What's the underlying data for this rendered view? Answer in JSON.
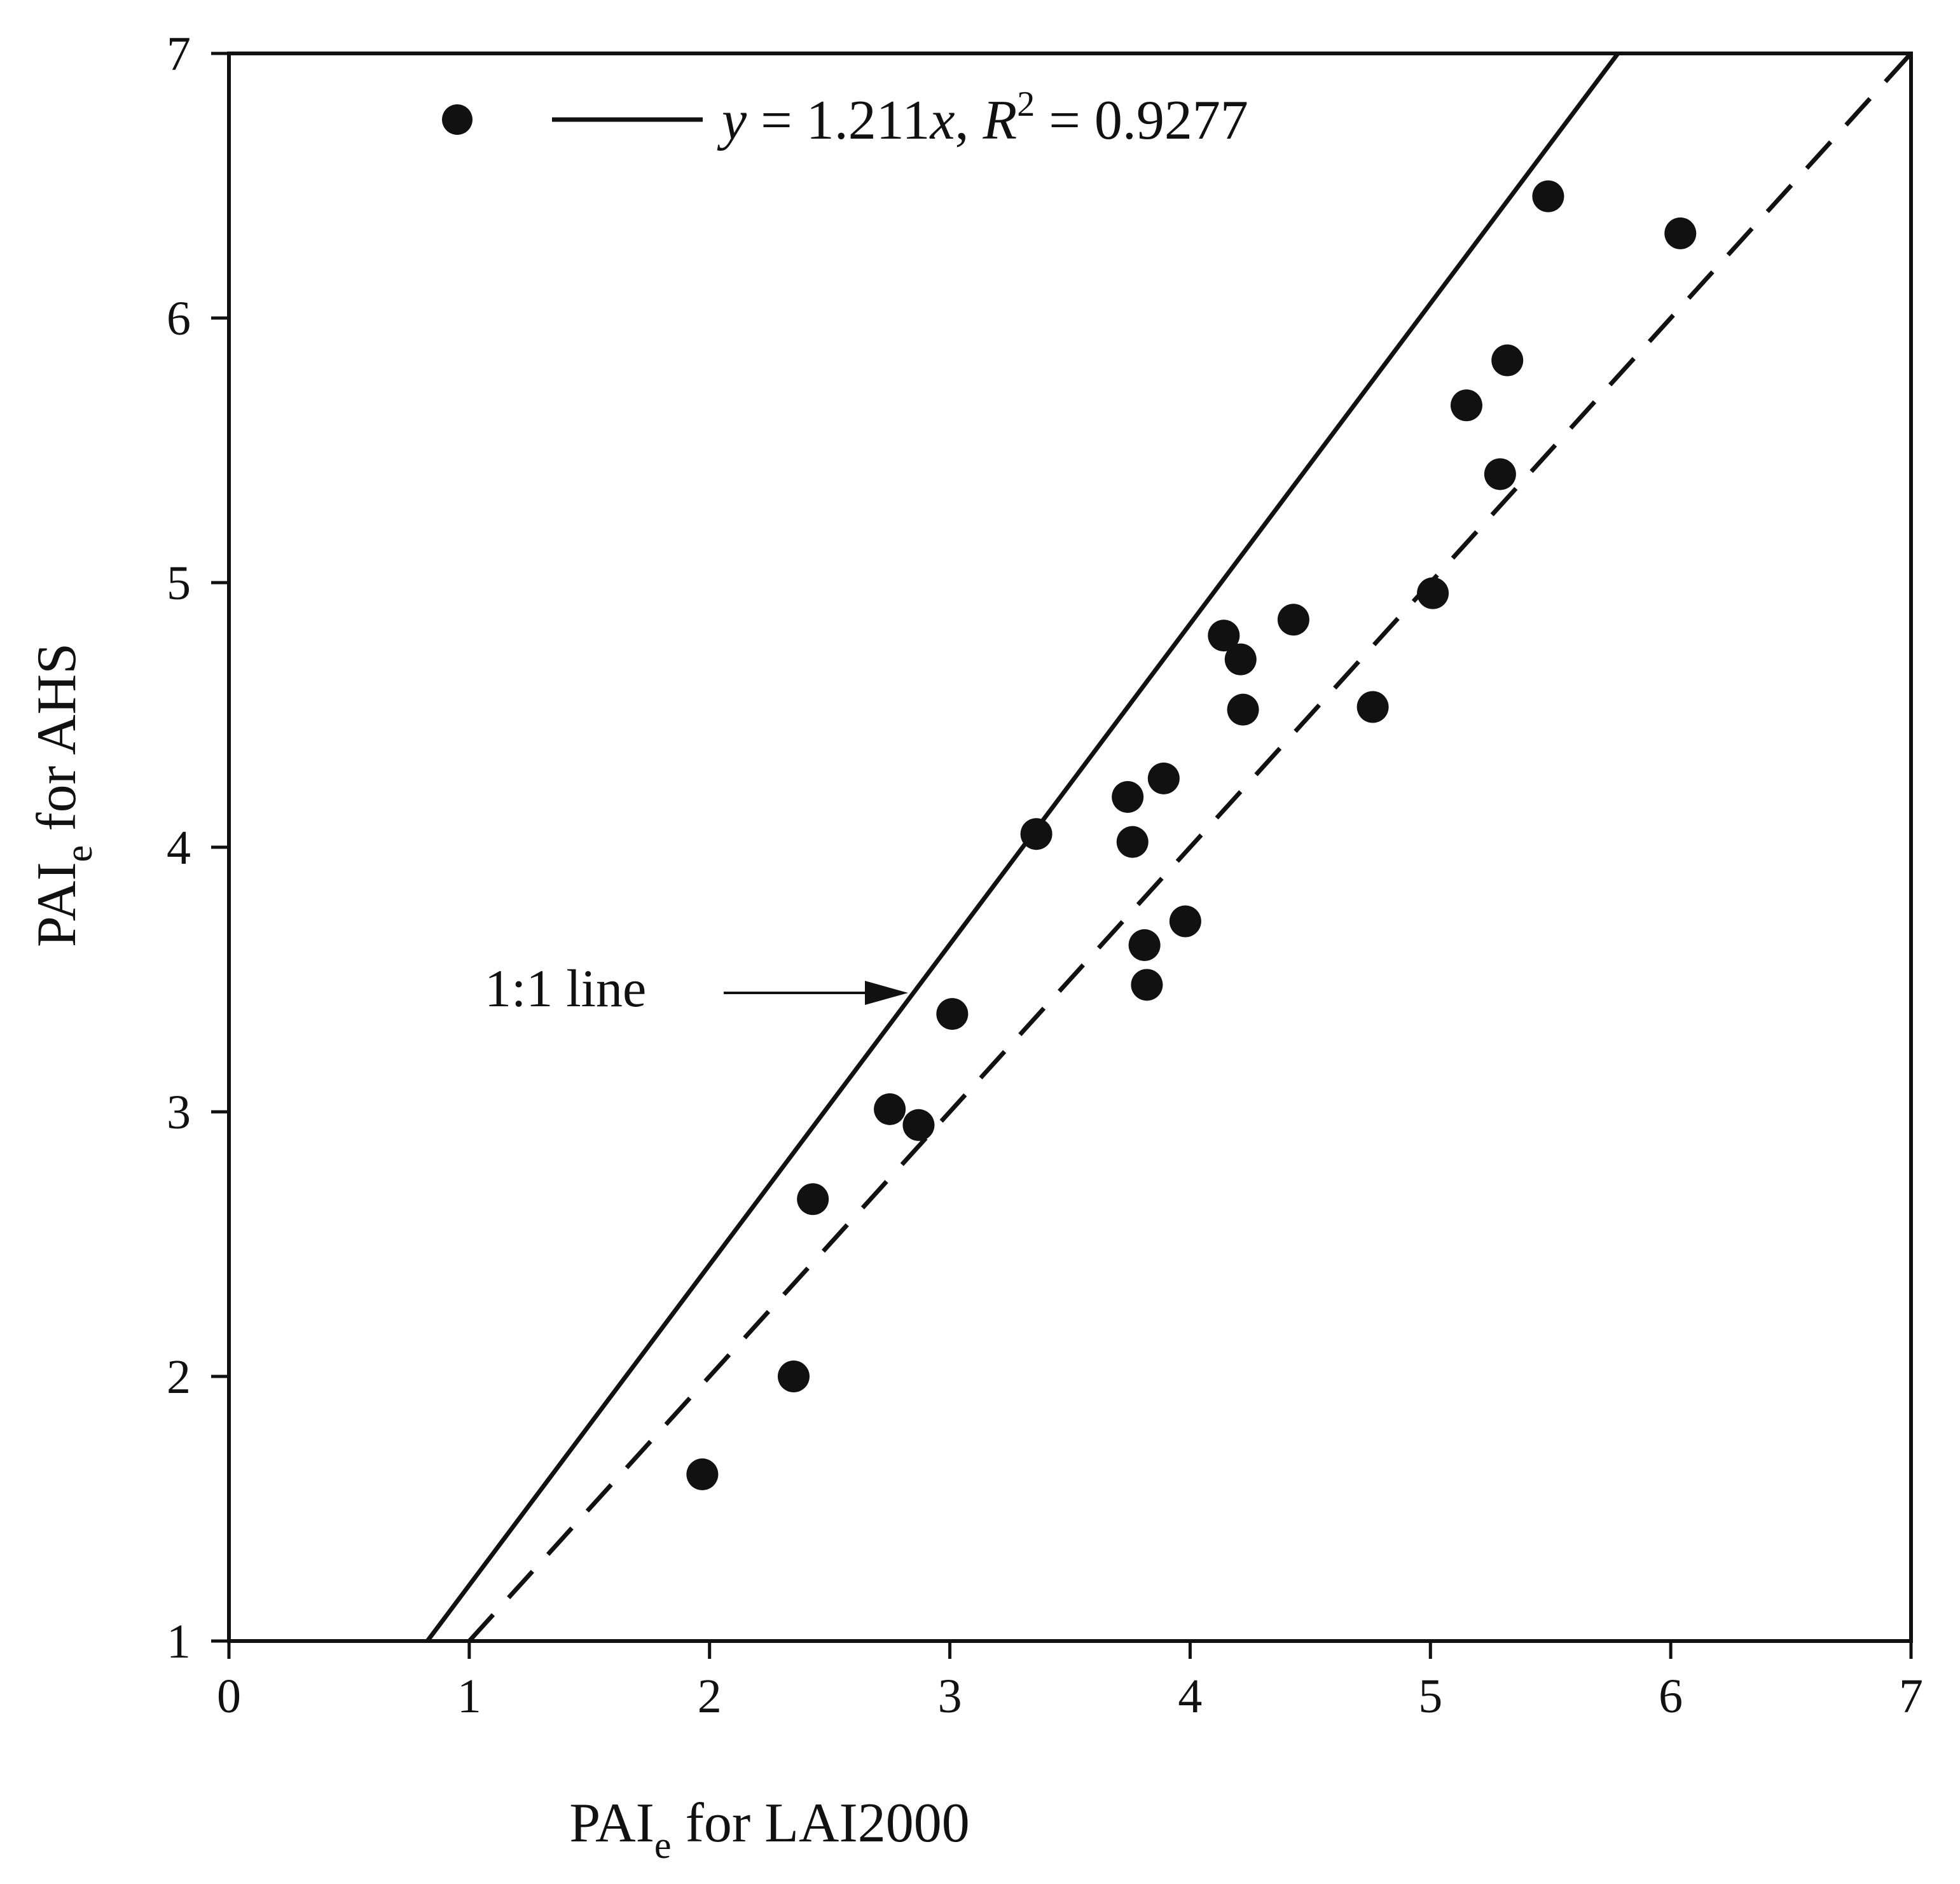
{
  "chart_data": {
    "type": "scatter",
    "xlabel": {
      "main": "PAI",
      "sub": "e",
      "rest": " for LAI2000"
    },
    "ylabel": {
      "main": "PAI",
      "sub": "e",
      "rest": " for AHS"
    },
    "xlim": [
      0,
      7
    ],
    "ylim": [
      1,
      7
    ],
    "xticks": [
      "0",
      "1",
      "2",
      "3",
      "4",
      "5",
      "6",
      "7"
    ],
    "yticks": [
      "1",
      "2",
      "3",
      "4",
      "5",
      "6",
      "7"
    ],
    "grid": false,
    "legend": {
      "placement": "top-left",
      "eq_y": "y",
      "eq_mid": " = 1.211",
      "eq_x": "x",
      "eq_comma": ", ",
      "eq_R": "R",
      "eq_sup": "2",
      "eq_end": " = 0.9277"
    },
    "fit_line": {
      "slope": 1.211,
      "intercept": 0,
      "r2": 0.9277
    },
    "reference_line": {
      "slope": 1,
      "intercept": 0,
      "label": "1:1 line"
    },
    "points": [
      {
        "x": 1.97,
        "y": 1.63
      },
      {
        "x": 2.35,
        "y": 2.0
      },
      {
        "x": 2.43,
        "y": 2.67
      },
      {
        "x": 2.75,
        "y": 3.01
      },
      {
        "x": 2.87,
        "y": 2.95
      },
      {
        "x": 3.01,
        "y": 3.37
      },
      {
        "x": 3.36,
        "y": 4.05
      },
      {
        "x": 3.74,
        "y": 4.19
      },
      {
        "x": 3.76,
        "y": 4.02
      },
      {
        "x": 3.81,
        "y": 3.63
      },
      {
        "x": 3.82,
        "y": 3.48
      },
      {
        "x": 3.89,
        "y": 4.26
      },
      {
        "x": 3.98,
        "y": 3.72
      },
      {
        "x": 4.14,
        "y": 4.8
      },
      {
        "x": 4.21,
        "y": 4.71
      },
      {
        "x": 4.22,
        "y": 4.52
      },
      {
        "x": 4.43,
        "y": 4.86
      },
      {
        "x": 4.76,
        "y": 4.53
      },
      {
        "x": 5.01,
        "y": 4.96
      },
      {
        "x": 5.15,
        "y": 5.67
      },
      {
        "x": 5.29,
        "y": 5.41
      },
      {
        "x": 5.32,
        "y": 5.84
      },
      {
        "x": 5.49,
        "y": 6.46
      },
      {
        "x": 6.04,
        "y": 6.32
      }
    ]
  }
}
